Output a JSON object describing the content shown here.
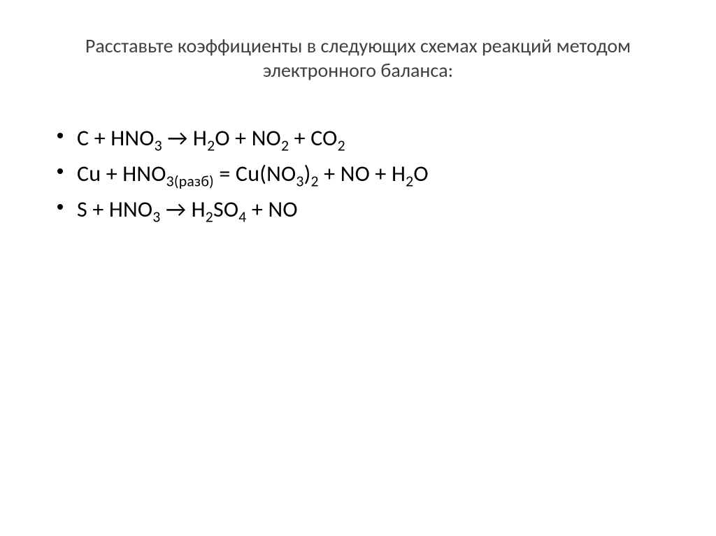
{
  "title": "Расставьте коэффициенты в следующих схемах реакций методом электронного баланса:",
  "equations": {
    "eq1": {
      "plain": "C + HNO3 → H2O + NO2 + CO2",
      "parts": [
        "C + HNO",
        "3",
        " → H",
        "2",
        "O + NO",
        "2",
        " + CO",
        "2"
      ]
    },
    "eq2": {
      "plain": "Cu + HNO3(разб) = Cu(NO3)2 + NO + H2O",
      "parts": [
        "Cu + HNO",
        "3(разб)",
        " = Cu(NO",
        "3",
        ")",
        "2",
        " + NO + H",
        "2",
        "O"
      ]
    },
    "eq3": {
      "plain": "S + HNO3 → H2SO4 + NO",
      "parts": [
        "S + HNO",
        "3",
        " → H",
        "2",
        "SO",
        "4",
        " + NO"
      ]
    }
  },
  "style": {
    "title_color": "#404040",
    "text_color": "#000000",
    "background_color": "#ffffff",
    "title_fontsize": 28,
    "body_fontsize": 32,
    "bullet_color": "#000000"
  }
}
